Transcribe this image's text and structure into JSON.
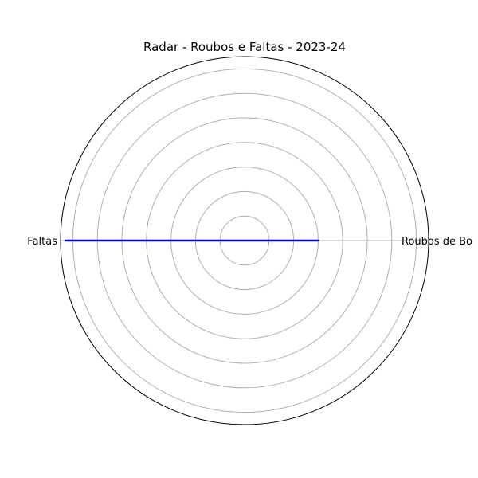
{
  "chart_data": {
    "type": "radar",
    "title": "Radar - Roubos e Faltas - 2023-24",
    "categories": [
      "Roubos de Bo",
      "Faltas"
    ],
    "series": [
      {
        "values": [
          3,
          7.3
        ],
        "color": "#0000cc"
      }
    ],
    "rlim": [
      0,
      7.5
    ],
    "rticks": [
      1,
      2,
      3,
      4,
      5,
      6,
      7
    ],
    "grid": true,
    "grid_color": "#b0b0b0",
    "frame_color": "#000000"
  }
}
